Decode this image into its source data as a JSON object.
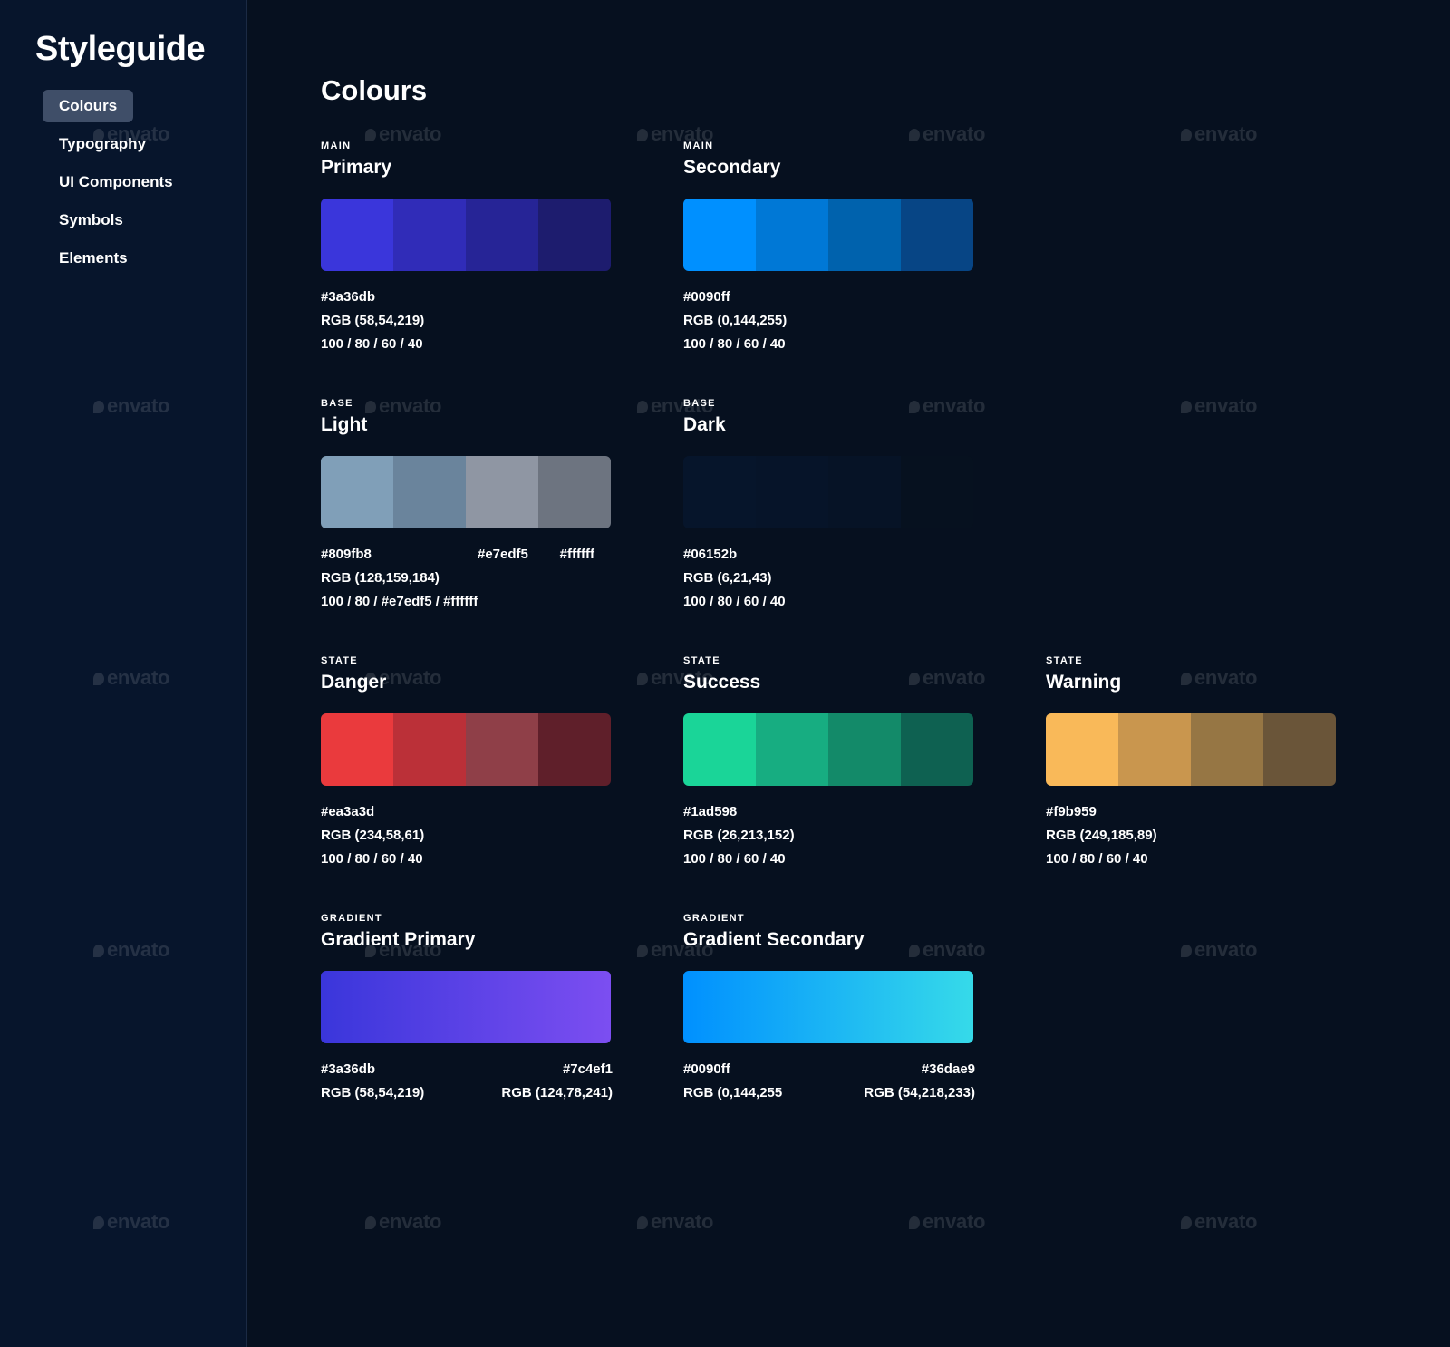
{
  "sidebar": {
    "brand": "Styleguide",
    "nav": [
      {
        "label": "Colours",
        "active": true
      },
      {
        "label": "Typography",
        "active": false
      },
      {
        "label": "UI Components",
        "active": false
      },
      {
        "label": "Symbols",
        "active": false
      },
      {
        "label": "Elements",
        "active": false
      }
    ]
  },
  "main": {
    "title": "Colours",
    "cards": [
      {
        "category": "MAIN",
        "name": "Primary",
        "swatches": [
          "#3a36db",
          "#302cb8",
          "#262496",
          "#1d1c6e"
        ],
        "rows": [
          {
            "left": "#3a36db",
            "right": ""
          },
          {
            "left": "RGB (58,54,219)",
            "right": ""
          },
          {
            "left": "100 / 80 / 60 / 40",
            "right": ""
          }
        ]
      },
      {
        "category": "MAIN",
        "name": "Secondary",
        "swatches": [
          "#0090ff",
          "#0078d6",
          "#0062ad",
          "#074585"
        ],
        "rows": [
          {
            "left": "#0090ff",
            "right": ""
          },
          {
            "left": "RGB (0,144,255)",
            "right": ""
          },
          {
            "left": "100 / 80 / 60 / 40",
            "right": ""
          }
        ]
      },
      {
        "category": "BASE",
        "name": "Light",
        "swatches": [
          "#809fb8",
          "#6a849c",
          "#8f96a3",
          "#6d7480"
        ],
        "rows": [
          {
            "left": "#809fb8",
            "mid": "#e7edf5",
            "right": "#ffffff"
          },
          {
            "left": "RGB (128,159,184)",
            "right": ""
          },
          {
            "left": "100 / 80 / #e7edf5 / #ffffff",
            "right": ""
          }
        ]
      },
      {
        "category": "BASE",
        "name": "Dark",
        "swatches": [
          "#06152b",
          "#061429",
          "#061326",
          "#06111f"
        ],
        "rows": [
          {
            "left": "#06152b",
            "right": ""
          },
          {
            "left": "RGB (6,21,43)",
            "right": ""
          },
          {
            "left": "100 / 80 / 60 / 40",
            "right": ""
          }
        ]
      },
      {
        "category": "STATE",
        "name": "Danger",
        "swatches": [
          "#ea3a3d",
          "#bb3038",
          "#8f3f48",
          "#5f1f2a"
        ],
        "rows": [
          {
            "left": "#ea3a3d",
            "right": ""
          },
          {
            "left": "RGB (234,58,61)",
            "right": ""
          },
          {
            "left": "100 / 80 / 60 / 40",
            "right": ""
          }
        ]
      },
      {
        "category": "STATE",
        "name": "Success",
        "swatches": [
          "#1ad598",
          "#17ad81",
          "#138a69",
          "#0e6151"
        ],
        "rows": [
          {
            "left": "#1ad598",
            "right": ""
          },
          {
            "left": "RGB (26,213,152)",
            "right": ""
          },
          {
            "left": "100 / 80 / 60 / 40",
            "right": ""
          }
        ]
      },
      {
        "category": "STATE",
        "name": "Warning",
        "swatches": [
          "#f9b959",
          "#c9964e",
          "#967644",
          "#6a5539"
        ],
        "rows": [
          {
            "left": "#f9b959",
            "right": ""
          },
          {
            "left": "RGB (249,185,89)",
            "right": ""
          },
          {
            "left": "100 / 80 / 60 / 40",
            "right": ""
          }
        ]
      },
      {
        "category": "GRADIENT",
        "name": "Gradient Primary",
        "gradient": [
          "#3a36db",
          "#7c4ef1"
        ],
        "rows": [
          {
            "left": "#3a36db",
            "right": "#7c4ef1"
          },
          {
            "left": "RGB (58,54,219)",
            "right": "RGB (124,78,241)"
          }
        ]
      },
      {
        "category": "GRADIENT",
        "name": "Gradient Secondary",
        "gradient": [
          "#0090ff",
          "#36dae9"
        ],
        "rows": [
          {
            "left": "#0090ff",
            "right": "#36dae9"
          },
          {
            "left": "RGB (0,144,255",
            "right": "RGB (54,218,233)"
          }
        ]
      }
    ]
  },
  "watermark": "envato"
}
